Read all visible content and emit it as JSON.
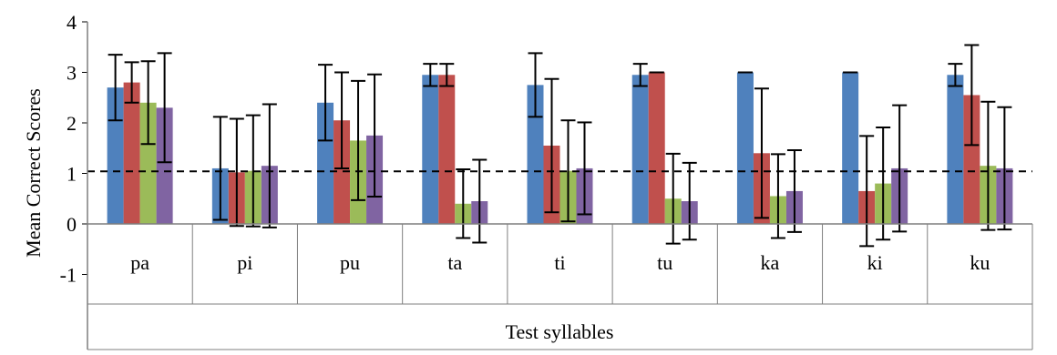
{
  "chart_data": {
    "type": "bar",
    "ylabel": "Mean Correct Scores",
    "xlabel": "Test syllables",
    "ylim": [
      -1,
      4
    ],
    "yticks": [
      -1,
      0,
      1,
      2,
      3,
      4
    ],
    "grid": false,
    "legend": "none",
    "categories": [
      "pa",
      "pi",
      "pu",
      "ta",
      "ti",
      "tu",
      "ka",
      "ki",
      "ku"
    ],
    "series": [
      {
        "color": "#4F81BD",
        "values": [
          2.7,
          1.1,
          2.4,
          2.95,
          2.75,
          2.95,
          3.0,
          3.0,
          2.95
        ],
        "errors": [
          0.65,
          1.02,
          0.75,
          0.22,
          0.63,
          0.22,
          0.0,
          0.0,
          0.22
        ]
      },
      {
        "color": "#C0504D",
        "values": [
          2.8,
          1.02,
          2.05,
          2.95,
          1.55,
          3.0,
          1.4,
          0.65,
          2.55
        ],
        "errors": [
          0.4,
          1.06,
          0.95,
          0.22,
          1.32,
          0.0,
          1.28,
          1.09,
          0.99
        ]
      },
      {
        "color": "#9BBB59",
        "values": [
          2.4,
          1.05,
          1.65,
          0.4,
          1.05,
          0.5,
          0.55,
          0.8,
          1.15
        ],
        "errors": [
          0.82,
          1.1,
          1.18,
          0.68,
          1.0,
          0.89,
          0.83,
          1.11,
          1.27
        ]
      },
      {
        "color": "#8064A2",
        "values": [
          2.3,
          1.15,
          1.75,
          0.45,
          1.1,
          0.45,
          0.65,
          1.1,
          1.1
        ],
        "errors": [
          1.08,
          1.22,
          1.21,
          0.82,
          0.91,
          0.76,
          0.81,
          1.25,
          1.21
        ]
      }
    ],
    "reference_line": {
      "y": 1.04,
      "style": "dashed"
    }
  }
}
